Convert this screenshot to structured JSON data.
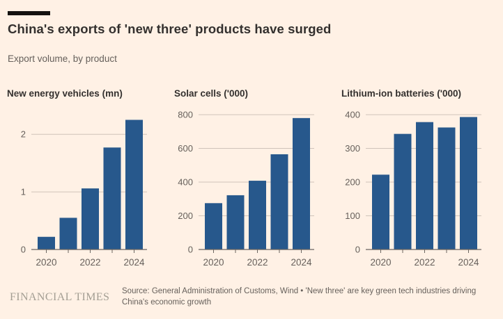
{
  "colors": {
    "background": "#FFF1E5",
    "bar": "#27588C",
    "gridline": "#CFC3B9",
    "axis": "#6B6560",
    "text_dark": "#33302E",
    "text_muted": "#66605B",
    "brand_bar": "#141210",
    "ft_logo": "#A39E93"
  },
  "header": {
    "title": "China's exports of 'new three' products have surged",
    "subtitle": "Export volume, by product"
  },
  "chart_data": [
    {
      "type": "bar",
      "title": "New energy vehicles (mn)",
      "categories": [
        "2020",
        "2021",
        "2022",
        "2023",
        "2024"
      ],
      "values": [
        0.22,
        0.55,
        1.06,
        1.77,
        2.25
      ],
      "yticks": [
        0,
        1,
        2
      ],
      "ylim": [
        0,
        2.34
      ],
      "xtick_labels": [
        "2020",
        "2022",
        "2024"
      ],
      "grid": "horizontal",
      "legend": "none"
    },
    {
      "type": "bar",
      "title": "Solar cells ('000)",
      "categories": [
        "2020",
        "2021",
        "2022",
        "2023",
        "2024"
      ],
      "values": [
        275,
        322,
        408,
        565,
        780
      ],
      "yticks": [
        0,
        200,
        400,
        600,
        800
      ],
      "ylim": [
        0,
        800
      ],
      "xtick_labels": [
        "2020",
        "2022",
        "2024"
      ],
      "grid": "horizontal",
      "legend": "none"
    },
    {
      "type": "bar",
      "title": "Lithium-ion batteries ('000)",
      "categories": [
        "2020",
        "2021",
        "2022",
        "2023",
        "2024"
      ],
      "values": [
        222,
        343,
        378,
        362,
        393
      ],
      "yticks": [
        0,
        100,
        200,
        300,
        400
      ],
      "ylim": [
        0,
        400
      ],
      "xtick_labels": [
        "2020",
        "2022",
        "2024"
      ],
      "grid": "horizontal",
      "legend": "none"
    }
  ],
  "footer": {
    "brand": "FINANCIAL TIMES",
    "source_lines": [
      "Source: General Administration of Customs, Wind • 'New three' are key green tech industries driving",
      "China's economic growth"
    ]
  }
}
